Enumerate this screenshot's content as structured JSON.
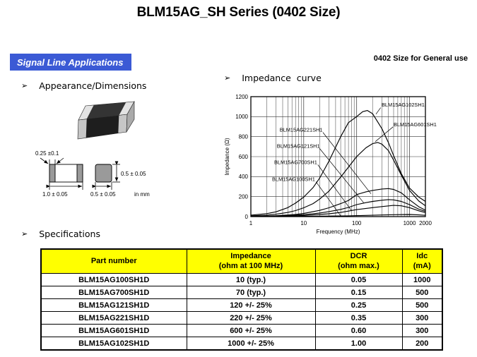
{
  "title": "BLM15AG_SH Series (0402 Size)",
  "banner": {
    "label": "Signal Line Applications",
    "bg": "#3b5ad5"
  },
  "top_right_note": "0402 Size for General use",
  "sections": {
    "bullet_glyph": "➢",
    "appearance_label": "Appearance/Dimensions",
    "impedance_label": "Impedance  curve",
    "specifications_label": "Specifications"
  },
  "dimensions": {
    "terminal_width": "0.25  ±0.1",
    "length": "1.0   ±   0.05",
    "width_bottom": "0.5   ±   0.05",
    "height": "0.5  ±  0.05",
    "unit_note": "in mm"
  },
  "chart_data": {
    "type": "line",
    "xlabel": "Frequency (MHz)",
    "ylabel": "Impedance (Ω)",
    "xscale": "log",
    "xlim": [
      1,
      2000
    ],
    "ylim": [
      0,
      1200
    ],
    "x_ticks": [
      1,
      10,
      100,
      1000,
      2000
    ],
    "y_ticks": [
      0,
      200,
      400,
      600,
      800,
      1000,
      1200
    ],
    "grid": true,
    "series": [
      {
        "name": "BLM15AG102SH1",
        "points": [
          [
            1,
            15
          ],
          [
            2,
            30
          ],
          [
            3,
            48
          ],
          [
            5,
            90
          ],
          [
            7,
            135
          ],
          [
            10,
            195
          ],
          [
            15,
            290
          ],
          [
            20,
            385
          ],
          [
            30,
            555
          ],
          [
            50,
            800
          ],
          [
            70,
            940
          ],
          [
            100,
            1000
          ],
          [
            130,
            1050
          ],
          [
            160,
            1062
          ],
          [
            200,
            1030
          ],
          [
            300,
            880
          ],
          [
            400,
            740
          ],
          [
            500,
            610
          ],
          [
            700,
            430
          ],
          [
            1000,
            285
          ],
          [
            1500,
            195
          ],
          [
            2000,
            152
          ]
        ]
      },
      {
        "name": "BLM15AG601SH1",
        "points": [
          [
            1,
            8
          ],
          [
            2,
            15
          ],
          [
            3,
            24
          ],
          [
            5,
            42
          ],
          [
            7,
            60
          ],
          [
            10,
            88
          ],
          [
            15,
            130
          ],
          [
            20,
            175
          ],
          [
            30,
            255
          ],
          [
            50,
            395
          ],
          [
            70,
            495
          ],
          [
            100,
            600
          ],
          [
            150,
            688
          ],
          [
            200,
            730
          ],
          [
            250,
            742
          ],
          [
            300,
            725
          ],
          [
            400,
            660
          ],
          [
            500,
            565
          ],
          [
            700,
            415
          ],
          [
            1000,
            262
          ],
          [
            1500,
            155
          ],
          [
            2000,
            108
          ]
        ]
      },
      {
        "name": "BLM15AG221SH1",
        "points": [
          [
            1,
            3
          ],
          [
            2,
            6
          ],
          [
            3,
            9
          ],
          [
            5,
            16
          ],
          [
            7,
            22
          ],
          [
            10,
            32
          ],
          [
            20,
            62
          ],
          [
            30,
            88
          ],
          [
            50,
            130
          ],
          [
            70,
            162
          ],
          [
            100,
            220
          ],
          [
            150,
            248
          ],
          [
            200,
            262
          ],
          [
            300,
            276
          ],
          [
            400,
            280
          ],
          [
            500,
            272
          ],
          [
            700,
            238
          ],
          [
            1000,
            168
          ],
          [
            1500,
            98
          ],
          [
            2000,
            64
          ]
        ]
      },
      {
        "name": "BLM15AG121SH1",
        "points": [
          [
            1,
            2
          ],
          [
            3,
            6
          ],
          [
            5,
            10
          ],
          [
            10,
            19
          ],
          [
            20,
            36
          ],
          [
            30,
            50
          ],
          [
            50,
            72
          ],
          [
            70,
            92
          ],
          [
            100,
            120
          ],
          [
            150,
            140
          ],
          [
            200,
            152
          ],
          [
            300,
            164
          ],
          [
            400,
            170
          ],
          [
            500,
            167
          ],
          [
            700,
            152
          ],
          [
            1000,
            120
          ],
          [
            1500,
            74
          ],
          [
            2000,
            52
          ]
        ]
      },
      {
        "name": "BLM15AG700SH1",
        "points": [
          [
            1,
            1
          ],
          [
            3,
            4
          ],
          [
            10,
            11
          ],
          [
            30,
            28
          ],
          [
            50,
            42
          ],
          [
            70,
            55
          ],
          [
            100,
            70
          ],
          [
            200,
            90
          ],
          [
            300,
            100
          ],
          [
            500,
            112
          ],
          [
            700,
            108
          ],
          [
            1000,
            90
          ],
          [
            1500,
            58
          ],
          [
            2000,
            40
          ]
        ]
      },
      {
        "name": "BLM15AG100SH1",
        "points": [
          [
            1,
            0.5
          ],
          [
            3,
            1.5
          ],
          [
            10,
            3
          ],
          [
            30,
            6
          ],
          [
            70,
            8
          ],
          [
            100,
            10
          ],
          [
            300,
            16
          ],
          [
            500,
            19
          ],
          [
            1000,
            21
          ],
          [
            1500,
            17
          ],
          [
            2000,
            13
          ]
        ]
      }
    ],
    "labels": [
      {
        "text": "BLM15AG102SH1",
        "at": [
          297,
          1100
        ],
        "line": [
          [
            285,
            1090
          ],
          [
            232,
            1025
          ]
        ]
      },
      {
        "text": "BLM15AG601SH1",
        "at": [
          500,
          905
        ],
        "line": [
          [
            488,
            898
          ],
          [
            225,
            750
          ]
        ]
      },
      {
        "text": "BLM15AG221SH1",
        "at": [
          3.5,
          850
        ],
        "line": [
          [
            23,
            843
          ],
          [
            187,
            228
          ]
        ]
      },
      {
        "text": "BLM15AG121SH1",
        "at": [
          3.1,
          688
        ],
        "line": [
          [
            20,
            681
          ],
          [
            137,
            136
          ]
        ]
      },
      {
        "text": "BLM15AG700SH1",
        "at": [
          2.76,
          526
        ],
        "line": [
          [
            18.5,
            519
          ],
          [
            79,
            64
          ]
        ]
      },
      {
        "text": "BLM15AG100SH1",
        "at": [
          2.52,
          356
        ],
        "line": [
          [
            17,
            349
          ],
          [
            50,
            8
          ]
        ]
      }
    ]
  },
  "table": {
    "header_bg": "#ffff00",
    "headers": [
      "Part number",
      "Impedance\n(ohm at 100 MHz)",
      "DCR\n(ohm max.)",
      "Idc\n(mA)"
    ],
    "rows": [
      [
        "BLM15AG100SH1D",
        "10 (typ.)",
        "0.05",
        "1000"
      ],
      [
        "BLM15AG700SH1D",
        "70 (typ.)",
        "0.15",
        "500"
      ],
      [
        "BLM15AG121SH1D",
        "120 +/- 25%",
        "0.25",
        "500"
      ],
      [
        "BLM15AG221SH1D",
        "220 +/- 25%",
        "0.35",
        "300"
      ],
      [
        "BLM15AG601SH1D",
        "600 +/- 25%",
        "0.60",
        "300"
      ],
      [
        "BLM15AG102SH1D",
        "1000 +/- 25%",
        "1.00",
        "200"
      ]
    ]
  }
}
